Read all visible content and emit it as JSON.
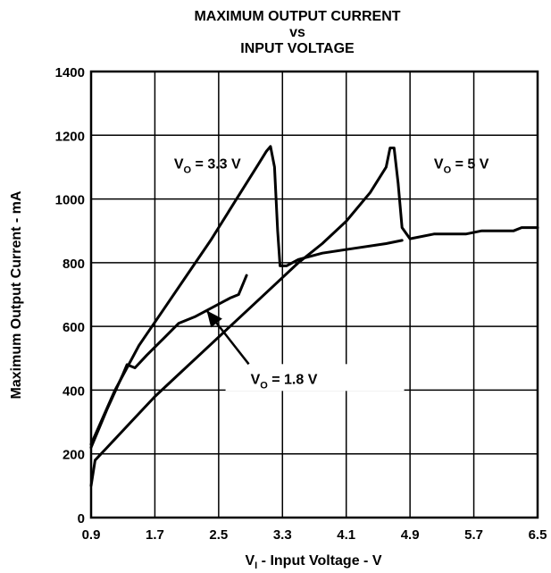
{
  "chart_data": {
    "type": "line",
    "title_lines": [
      "MAXIMUM OUTPUT CURRENT",
      "vs",
      "INPUT VOLTAGE"
    ],
    "xlabel": {
      "main": "V",
      "sub": "I",
      "rest": " - Input Voltage - V"
    },
    "ylabel": "Maximum Output Current - mA",
    "xlim": [
      0.9,
      6.5
    ],
    "ylim": [
      0,
      1400
    ],
    "xticks": [
      0.9,
      1.7,
      2.5,
      3.3,
      4.1,
      4.9,
      5.7,
      6.5
    ],
    "xtick_labels": [
      "0.9",
      "1.7",
      "2.5",
      "3.3",
      "4.1",
      "4.9",
      "5.7",
      "6.5"
    ],
    "yticks": [
      0,
      200,
      400,
      600,
      800,
      1000,
      1200,
      1400
    ],
    "ytick_labels": [
      "0",
      "200",
      "400",
      "600",
      "800",
      "1000",
      "1200",
      "1400"
    ],
    "grid": true,
    "line_color": "#000000",
    "series": [
      {
        "name": "VO = 3.3 V",
        "label": {
          "main": "V",
          "sub": "O",
          "rest": " = 3.3 V"
        },
        "points": [
          [
            0.9,
            230
          ],
          [
            1.2,
            400
          ],
          [
            1.5,
            540
          ],
          [
            1.8,
            650
          ],
          [
            2.1,
            760
          ],
          [
            2.4,
            870
          ],
          [
            2.7,
            990
          ],
          [
            3.0,
            1110
          ],
          [
            3.1,
            1150
          ],
          [
            3.15,
            1165
          ],
          [
            3.2,
            1100
          ],
          [
            3.24,
            900
          ],
          [
            3.27,
            790
          ],
          [
            3.35,
            790
          ],
          [
            3.5,
            810
          ],
          [
            3.8,
            830
          ],
          [
            4.2,
            845
          ],
          [
            4.6,
            860
          ],
          [
            4.8,
            870
          ]
        ]
      },
      {
        "name": "VO = 5 V",
        "label": {
          "main": "V",
          "sub": "O",
          "rest": " = 5 V"
        },
        "points": [
          [
            0.9,
            100
          ],
          [
            0.95,
            180
          ],
          [
            1.1,
            220
          ],
          [
            1.4,
            300
          ],
          [
            1.7,
            380
          ],
          [
            2.0,
            450
          ],
          [
            2.3,
            520
          ],
          [
            2.6,
            590
          ],
          [
            2.9,
            660
          ],
          [
            3.2,
            730
          ],
          [
            3.5,
            800
          ],
          [
            3.8,
            860
          ],
          [
            4.1,
            930
          ],
          [
            4.4,
            1020
          ],
          [
            4.6,
            1100
          ],
          [
            4.65,
            1160
          ],
          [
            4.7,
            1160
          ],
          [
            4.75,
            1050
          ],
          [
            4.8,
            910
          ],
          [
            4.9,
            875
          ],
          [
            5.2,
            890
          ],
          [
            5.6,
            890
          ],
          [
            5.8,
            900
          ],
          [
            6.2,
            900
          ],
          [
            6.3,
            910
          ],
          [
            6.5,
            910
          ]
        ]
      },
      {
        "name": "VO = 1.8 V",
        "label": {
          "main": "V",
          "sub": "O",
          "rest": " = 1.8 V"
        },
        "points": [
          [
            0.9,
            220
          ],
          [
            1.1,
            340
          ],
          [
            1.3,
            450
          ],
          [
            1.35,
            480
          ],
          [
            1.45,
            470
          ],
          [
            1.6,
            510
          ],
          [
            1.8,
            560
          ],
          [
            2.0,
            610
          ],
          [
            2.2,
            630
          ],
          [
            2.35,
            650
          ],
          [
            2.5,
            670
          ],
          [
            2.65,
            690
          ],
          [
            2.75,
            700
          ],
          [
            2.85,
            760
          ]
        ]
      }
    ],
    "annotations": [
      {
        "series": "VO = 1.8 V",
        "type": "arrow",
        "from": [
          2.9,
          420
        ],
        "to": [
          2.35,
          650
        ]
      }
    ]
  }
}
